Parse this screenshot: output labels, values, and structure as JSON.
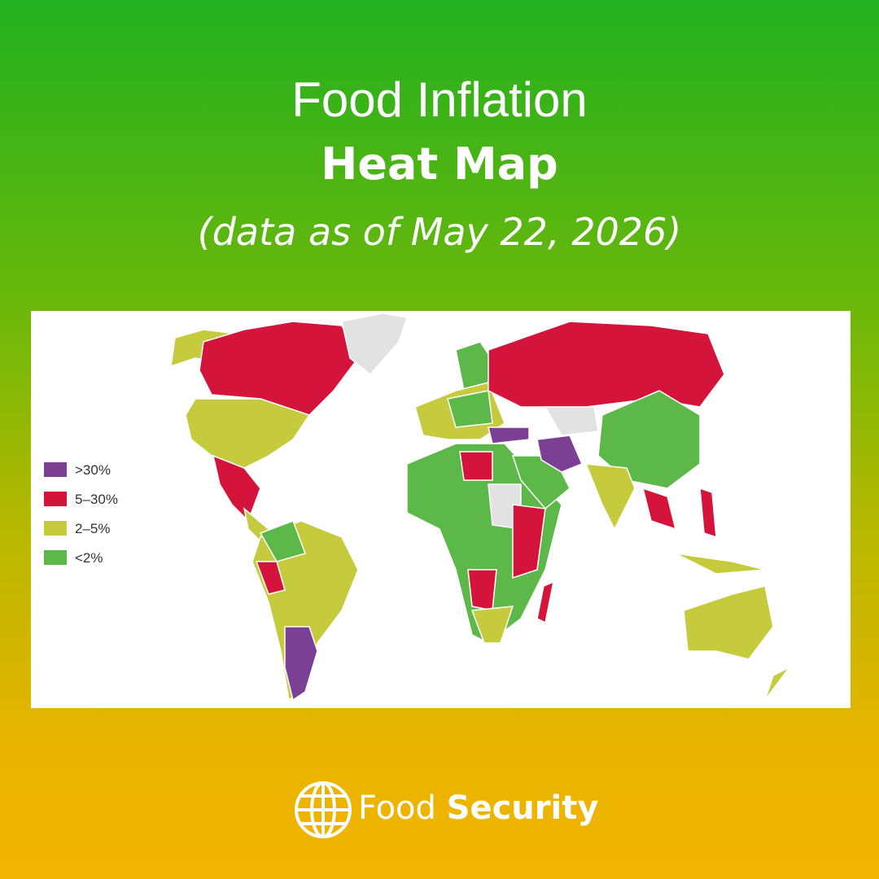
{
  "header": {
    "title": "Food Inflation",
    "title_bold": "Heat Map",
    "subtitle": "(data as of May 22, 2026)"
  },
  "legend": [
    {
      "label": ">30%",
      "color": "#7b3f93"
    },
    {
      "label": "5–30%",
      "color": "#d4143a"
    },
    {
      "label": "2–5%",
      "color": "#c6cb3e"
    },
    {
      "label": "<2%",
      "color": "#5cb848"
    }
  ],
  "footer": {
    "brand": "Food",
    "brand_bold": "Security"
  }
}
